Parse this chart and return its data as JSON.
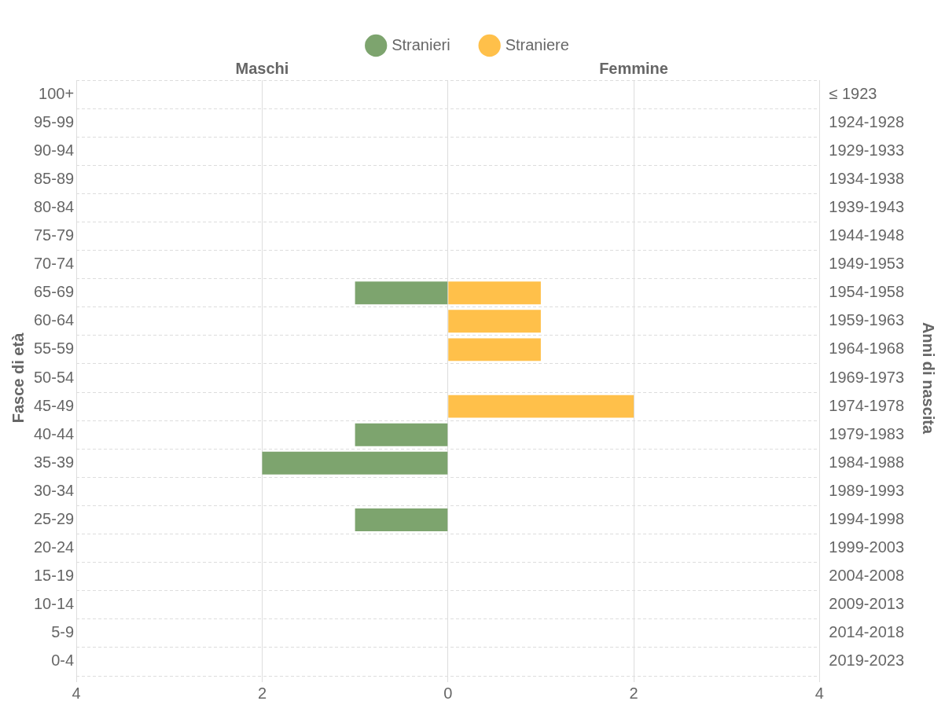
{
  "chart_data": {
    "type": "bar",
    "orientation": "horizontal",
    "stacked": true,
    "categories": [
      "100+",
      "95-99",
      "90-94",
      "85-89",
      "80-84",
      "75-79",
      "70-74",
      "65-69",
      "60-64",
      "55-59",
      "50-54",
      "45-49",
      "40-44",
      "35-39",
      "30-34",
      "25-29",
      "20-24",
      "15-19",
      "10-14",
      "5-9",
      "0-4"
    ],
    "y2_categories": [
      "≤ 1923",
      "1924-1928",
      "1929-1933",
      "1934-1938",
      "1939-1943",
      "1944-1948",
      "1949-1953",
      "1954-1958",
      "1959-1963",
      "1964-1968",
      "1969-1973",
      "1974-1978",
      "1979-1983",
      "1984-1988",
      "1989-1993",
      "1994-1998",
      "1999-2003",
      "2004-2008",
      "2009-2013",
      "2014-2018",
      "2019-2023"
    ],
    "series": [
      {
        "name": "Stranieri",
        "color": "#7da46e",
        "values": [
          0,
          0,
          0,
          0,
          0,
          0,
          0,
          -1,
          0,
          0,
          0,
          0,
          -1,
          -2,
          0,
          -1,
          0,
          0,
          0,
          0,
          0
        ]
      },
      {
        "name": "Straniere",
        "color": "#ffc04a",
        "values": [
          0,
          0,
          0,
          0,
          0,
          0,
          0,
          1,
          1,
          1,
          0,
          2,
          0,
          0,
          0,
          0,
          0,
          0,
          0,
          0,
          0
        ]
      }
    ],
    "xlim": [
      -4,
      4
    ],
    "xticks": [
      {
        "value": -4,
        "label": "4"
      },
      {
        "value": -2,
        "label": "2"
      },
      0,
      2,
      4
    ],
    "ylabel": "Fasce di età",
    "annotations": [
      "Maschi",
      "Femmine",
      "Anni di nascita"
    ],
    "grid": true,
    "legend": "top"
  }
}
